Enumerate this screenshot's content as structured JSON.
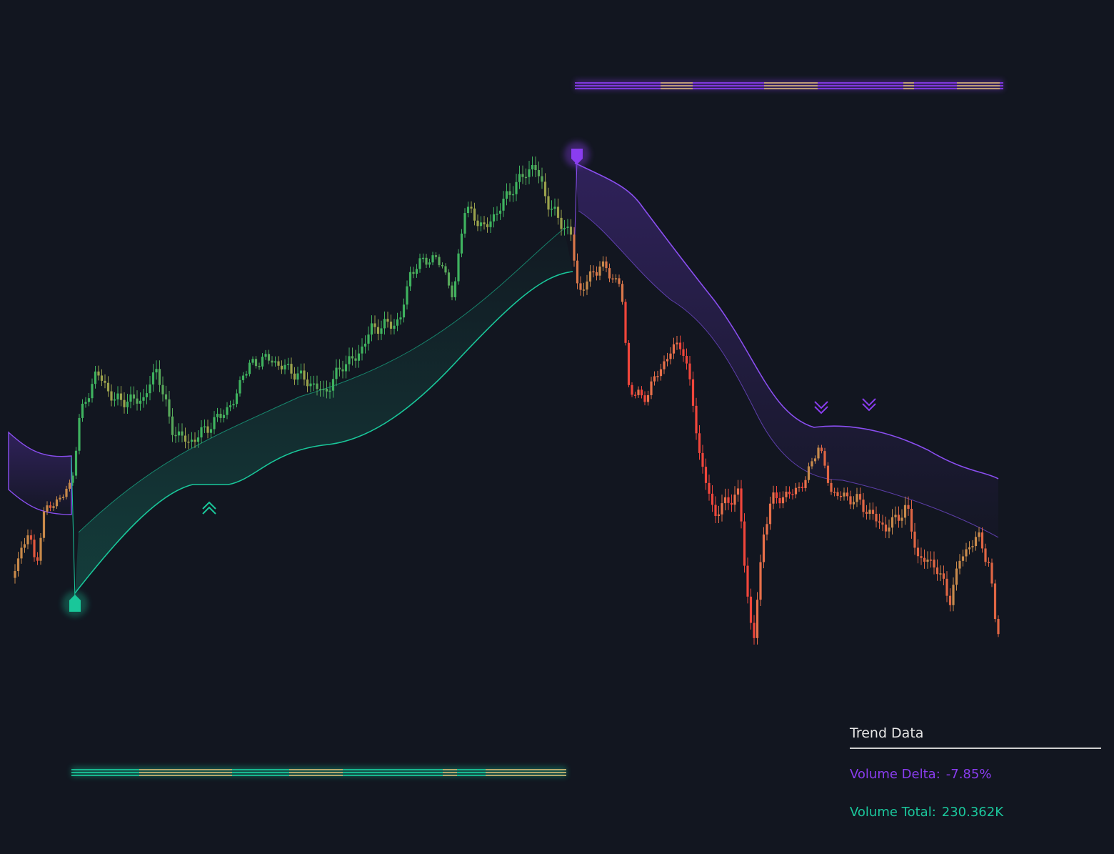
{
  "panel": {
    "title": "Trend Data",
    "rows": [
      {
        "label": "Volume Delta:",
        "value": "-7.85%"
      },
      {
        "label": "Volume Total:",
        "value": "230.362K"
      }
    ]
  }
}
